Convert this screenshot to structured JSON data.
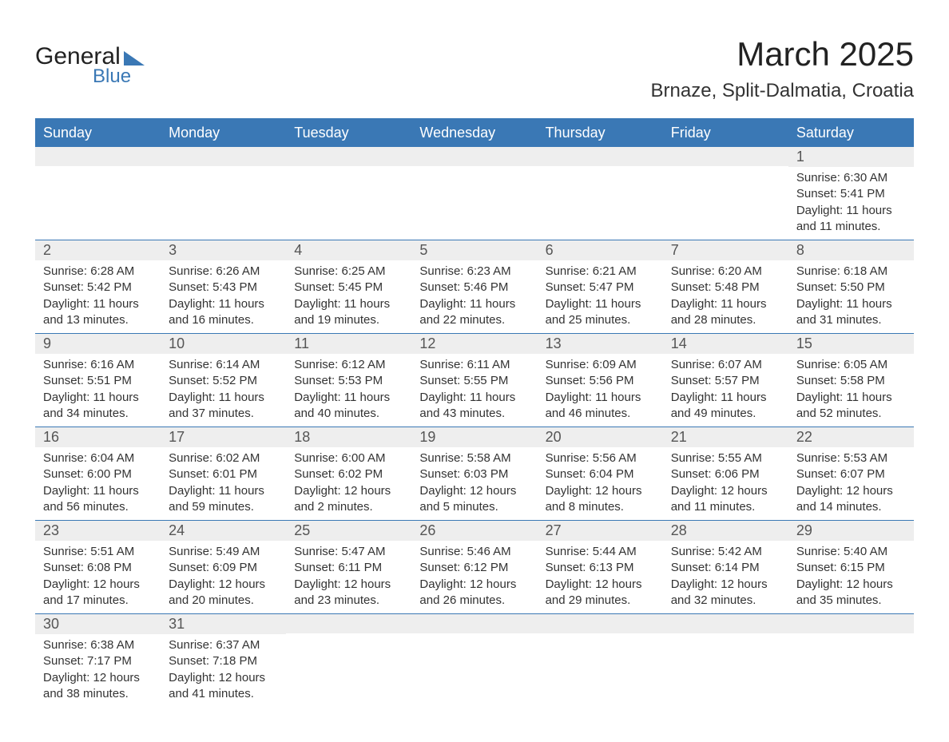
{
  "logo": {
    "text_general": "General",
    "text_blue": "Blue"
  },
  "title": "March 2025",
  "location": "Brnaze, Split-Dalmatia, Croatia",
  "colors": {
    "header_bg": "#3a78b5",
    "header_fg": "#ffffff",
    "band_bg": "#eeeeee",
    "row_border": "#3a78b5",
    "text": "#333333"
  },
  "day_headers": [
    "Sunday",
    "Monday",
    "Tuesday",
    "Wednesday",
    "Thursday",
    "Friday",
    "Saturday"
  ],
  "weeks": [
    [
      null,
      null,
      null,
      null,
      null,
      null,
      {
        "n": "1",
        "sunrise": "Sunrise: 6:30 AM",
        "sunset": "Sunset: 5:41 PM",
        "daylight": "Daylight: 11 hours and 11 minutes."
      }
    ],
    [
      {
        "n": "2",
        "sunrise": "Sunrise: 6:28 AM",
        "sunset": "Sunset: 5:42 PM",
        "daylight": "Daylight: 11 hours and 13 minutes."
      },
      {
        "n": "3",
        "sunrise": "Sunrise: 6:26 AM",
        "sunset": "Sunset: 5:43 PM",
        "daylight": "Daylight: 11 hours and 16 minutes."
      },
      {
        "n": "4",
        "sunrise": "Sunrise: 6:25 AM",
        "sunset": "Sunset: 5:45 PM",
        "daylight": "Daylight: 11 hours and 19 minutes."
      },
      {
        "n": "5",
        "sunrise": "Sunrise: 6:23 AM",
        "sunset": "Sunset: 5:46 PM",
        "daylight": "Daylight: 11 hours and 22 minutes."
      },
      {
        "n": "6",
        "sunrise": "Sunrise: 6:21 AM",
        "sunset": "Sunset: 5:47 PM",
        "daylight": "Daylight: 11 hours and 25 minutes."
      },
      {
        "n": "7",
        "sunrise": "Sunrise: 6:20 AM",
        "sunset": "Sunset: 5:48 PM",
        "daylight": "Daylight: 11 hours and 28 minutes."
      },
      {
        "n": "8",
        "sunrise": "Sunrise: 6:18 AM",
        "sunset": "Sunset: 5:50 PM",
        "daylight": "Daylight: 11 hours and 31 minutes."
      }
    ],
    [
      {
        "n": "9",
        "sunrise": "Sunrise: 6:16 AM",
        "sunset": "Sunset: 5:51 PM",
        "daylight": "Daylight: 11 hours and 34 minutes."
      },
      {
        "n": "10",
        "sunrise": "Sunrise: 6:14 AM",
        "sunset": "Sunset: 5:52 PM",
        "daylight": "Daylight: 11 hours and 37 minutes."
      },
      {
        "n": "11",
        "sunrise": "Sunrise: 6:12 AM",
        "sunset": "Sunset: 5:53 PM",
        "daylight": "Daylight: 11 hours and 40 minutes."
      },
      {
        "n": "12",
        "sunrise": "Sunrise: 6:11 AM",
        "sunset": "Sunset: 5:55 PM",
        "daylight": "Daylight: 11 hours and 43 minutes."
      },
      {
        "n": "13",
        "sunrise": "Sunrise: 6:09 AM",
        "sunset": "Sunset: 5:56 PM",
        "daylight": "Daylight: 11 hours and 46 minutes."
      },
      {
        "n": "14",
        "sunrise": "Sunrise: 6:07 AM",
        "sunset": "Sunset: 5:57 PM",
        "daylight": "Daylight: 11 hours and 49 minutes."
      },
      {
        "n": "15",
        "sunrise": "Sunrise: 6:05 AM",
        "sunset": "Sunset: 5:58 PM",
        "daylight": "Daylight: 11 hours and 52 minutes."
      }
    ],
    [
      {
        "n": "16",
        "sunrise": "Sunrise: 6:04 AM",
        "sunset": "Sunset: 6:00 PM",
        "daylight": "Daylight: 11 hours and 56 minutes."
      },
      {
        "n": "17",
        "sunrise": "Sunrise: 6:02 AM",
        "sunset": "Sunset: 6:01 PM",
        "daylight": "Daylight: 11 hours and 59 minutes."
      },
      {
        "n": "18",
        "sunrise": "Sunrise: 6:00 AM",
        "sunset": "Sunset: 6:02 PM",
        "daylight": "Daylight: 12 hours and 2 minutes."
      },
      {
        "n": "19",
        "sunrise": "Sunrise: 5:58 AM",
        "sunset": "Sunset: 6:03 PM",
        "daylight": "Daylight: 12 hours and 5 minutes."
      },
      {
        "n": "20",
        "sunrise": "Sunrise: 5:56 AM",
        "sunset": "Sunset: 6:04 PM",
        "daylight": "Daylight: 12 hours and 8 minutes."
      },
      {
        "n": "21",
        "sunrise": "Sunrise: 5:55 AM",
        "sunset": "Sunset: 6:06 PM",
        "daylight": "Daylight: 12 hours and 11 minutes."
      },
      {
        "n": "22",
        "sunrise": "Sunrise: 5:53 AM",
        "sunset": "Sunset: 6:07 PM",
        "daylight": "Daylight: 12 hours and 14 minutes."
      }
    ],
    [
      {
        "n": "23",
        "sunrise": "Sunrise: 5:51 AM",
        "sunset": "Sunset: 6:08 PM",
        "daylight": "Daylight: 12 hours and 17 minutes."
      },
      {
        "n": "24",
        "sunrise": "Sunrise: 5:49 AM",
        "sunset": "Sunset: 6:09 PM",
        "daylight": "Daylight: 12 hours and 20 minutes."
      },
      {
        "n": "25",
        "sunrise": "Sunrise: 5:47 AM",
        "sunset": "Sunset: 6:11 PM",
        "daylight": "Daylight: 12 hours and 23 minutes."
      },
      {
        "n": "26",
        "sunrise": "Sunrise: 5:46 AM",
        "sunset": "Sunset: 6:12 PM",
        "daylight": "Daylight: 12 hours and 26 minutes."
      },
      {
        "n": "27",
        "sunrise": "Sunrise: 5:44 AM",
        "sunset": "Sunset: 6:13 PM",
        "daylight": "Daylight: 12 hours and 29 minutes."
      },
      {
        "n": "28",
        "sunrise": "Sunrise: 5:42 AM",
        "sunset": "Sunset: 6:14 PM",
        "daylight": "Daylight: 12 hours and 32 minutes."
      },
      {
        "n": "29",
        "sunrise": "Sunrise: 5:40 AM",
        "sunset": "Sunset: 6:15 PM",
        "daylight": "Daylight: 12 hours and 35 minutes."
      }
    ],
    [
      {
        "n": "30",
        "sunrise": "Sunrise: 6:38 AM",
        "sunset": "Sunset: 7:17 PM",
        "daylight": "Daylight: 12 hours and 38 minutes."
      },
      {
        "n": "31",
        "sunrise": "Sunrise: 6:37 AM",
        "sunset": "Sunset: 7:18 PM",
        "daylight": "Daylight: 12 hours and 41 minutes."
      },
      null,
      null,
      null,
      null,
      null
    ]
  ]
}
